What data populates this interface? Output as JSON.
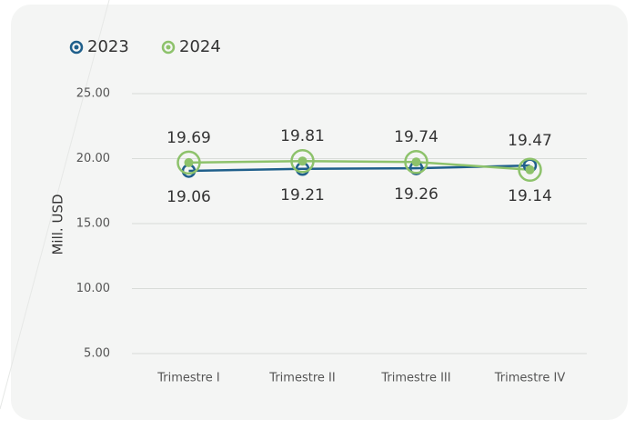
{
  "chart_data": {
    "type": "line",
    "y_label": "Mill. USD",
    "categories": [
      "Trimestre I",
      "Trimestre II",
      "Trimestre III",
      "Trimestre IV"
    ],
    "series": [
      {
        "name": "2023",
        "color": "#1f5f8b",
        "values": [
          19.06,
          19.21,
          19.26,
          19.47
        ]
      },
      {
        "name": "2024",
        "color": "#8dc26b",
        "values": [
          19.69,
          19.81,
          19.74,
          19.14
        ]
      }
    ],
    "ylim": [
      5,
      25
    ],
    "yticks": [
      {
        "value": 5,
        "label": "5.00"
      },
      {
        "value": 10,
        "label": "10.00"
      },
      {
        "value": 15,
        "label": "15.00"
      },
      {
        "value": 20,
        "label": "20.00"
      },
      {
        "value": 25,
        "label": "25.00"
      }
    ],
    "grid": true,
    "legend": "top-left"
  }
}
